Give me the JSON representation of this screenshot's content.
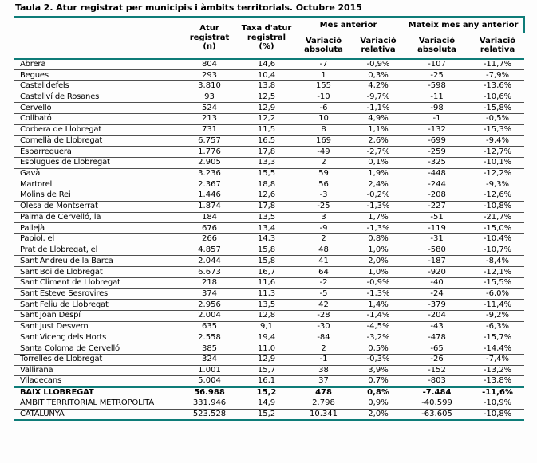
{
  "title": "Taula 2. Atur registrat per municipis i àmbits territorials. Octubre 2015",
  "colors": {
    "accent_teal": "#0e7c78",
    "row_separator": "#4f4f4f",
    "text": "#000000",
    "background": "#fdfdfd"
  },
  "table": {
    "header": {
      "atur_registrat": "Atur\nregistrat\n(n)",
      "taxa_atur": "Taxa d'atur\nregistral\n(%)",
      "mes_anterior": "Mes anterior",
      "mateix_mes_any_anterior": "Mateix mes any anterior",
      "variacio_absoluta": "Variació\nabsoluta",
      "variacio_relativa": "Variació\nrelativa"
    },
    "rows": [
      [
        "Abrera",
        "804",
        "14,6",
        "-7",
        "-0,9%",
        "-107",
        "-11,7%"
      ],
      [
        "Begues",
        "293",
        "10,4",
        "1",
        "0,3%",
        "-25",
        "-7,9%"
      ],
      [
        "Castelldefels",
        "3.810",
        "13,8",
        "155",
        "4,2%",
        "-598",
        "-13,6%"
      ],
      [
        "Castellví de Rosanes",
        "93",
        "12,5",
        "-10",
        "-9,7%",
        "-11",
        "-10,6%"
      ],
      [
        "Cervelló",
        "524",
        "12,9",
        "-6",
        "-1,1%",
        "-98",
        "-15,8%"
      ],
      [
        "Collbató",
        "213",
        "12,2",
        "10",
        "4,9%",
        "-1",
        "-0,5%"
      ],
      [
        "Corbera de Llobregat",
        "731",
        "11,5",
        "8",
        "1,1%",
        "-132",
        "-15,3%"
      ],
      [
        "Cornellà de Llobregat",
        "6.757",
        "16,5",
        "169",
        "2,6%",
        "-699",
        "-9,4%"
      ],
      [
        "Esparreguera",
        "1.776",
        "17,8",
        "-49",
        "-2,7%",
        "-259",
        "-12,7%"
      ],
      [
        "Esplugues de Llobregat",
        "2.905",
        "13,3",
        "2",
        "0,1%",
        "-325",
        "-10,1%"
      ],
      [
        "Gavà",
        "3.236",
        "15,5",
        "59",
        "1,9%",
        "-448",
        "-12,2%"
      ],
      [
        "Martorell",
        "2.367",
        "18,8",
        "56",
        "2,4%",
        "-244",
        "-9,3%"
      ],
      [
        "Molins de Rei",
        "1.446",
        "12,6",
        "-3",
        "-0,2%",
        "-208",
        "-12,6%"
      ],
      [
        "Olesa de Montserrat",
        "1.874",
        "17,8",
        "-25",
        "-1,3%",
        "-227",
        "-10,8%"
      ],
      [
        "Palma de Cervelló, la",
        "184",
        "13,5",
        "3",
        "1,7%",
        "-51",
        "-21,7%"
      ],
      [
        "Pallejà",
        "676",
        "13,4",
        "-9",
        "-1,3%",
        "-119",
        "-15,0%"
      ],
      [
        "Papiol, el",
        "266",
        "14,3",
        "2",
        "0,8%",
        "-31",
        "-10,4%"
      ],
      [
        "Prat de Llobregat, el",
        "4.857",
        "15,8",
        "48",
        "1,0%",
        "-580",
        "-10,7%"
      ],
      [
        "Sant Andreu de la Barca",
        "2.044",
        "15,8",
        "41",
        "2,0%",
        "-187",
        "-8,4%"
      ],
      [
        "Sant Boi de Llobregat",
        "6.673",
        "16,7",
        "64",
        "1,0%",
        "-920",
        "-12,1%"
      ],
      [
        "Sant Climent de Llobregat",
        "218",
        "11,6",
        "-2",
        "-0,9%",
        "-40",
        "-15,5%"
      ],
      [
        "Sant Esteve Sesrovires",
        "374",
        "11,3",
        "-5",
        "-1,3%",
        "-24",
        "-6,0%"
      ],
      [
        "Sant Feliu de Llobregat",
        "2.956",
        "13,5",
        "42",
        "1,4%",
        "-379",
        "-11,4%"
      ],
      [
        "Sant Joan Despí",
        "2.004",
        "12,8",
        "-28",
        "-1,4%",
        "-204",
        "-9,2%"
      ],
      [
        "Sant Just Desvern",
        "635",
        "9,1",
        "-30",
        "-4,5%",
        "-43",
        "-6,3%"
      ],
      [
        "Sant Vicenç dels Horts",
        "2.558",
        "19,4",
        "-84",
        "-3,2%",
        "-478",
        "-15,7%"
      ],
      [
        "Santa Coloma de Cervelló",
        "385",
        "11,0",
        "2",
        "0,5%",
        "-65",
        "-14,4%"
      ],
      [
        "Torrelles de Llobregat",
        "324",
        "12,9",
        "-1",
        "-0,3%",
        "-26",
        "-7,4%"
      ],
      [
        "Vallirana",
        "1.001",
        "15,7",
        "38",
        "3,9%",
        "-152",
        "-13,2%"
      ],
      [
        "Viladecans",
        "5.004",
        "16,1",
        "37",
        "0,7%",
        "-803",
        "-13,8%"
      ]
    ],
    "totals": [
      [
        "BAIX LLOBREGAT",
        "56.988",
        "15,2",
        "478",
        "0,8%",
        "-7.484",
        "-11,6%"
      ],
      [
        "ÀMBIT TERRITORIAL METROPOLITÀ",
        "331.946",
        "14,9",
        "2.798",
        "0,9%",
        "-40.599",
        "-10,9%"
      ],
      [
        "CATALUNYA",
        "523.528",
        "15,2",
        "10.341",
        "2,0%",
        "-63.605",
        "-10,8%"
      ]
    ]
  }
}
